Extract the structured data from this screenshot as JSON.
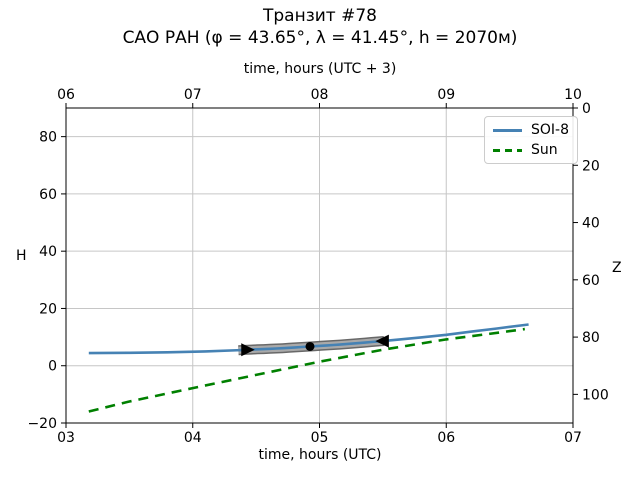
{
  "figure": {
    "title": "Транзит #78",
    "subtitle": "САО РАН (φ = 43.65°, λ = 41.45°, h = 2070м)"
  },
  "axes": {
    "top": {
      "label": "time, hours (UTC + 3)",
      "tick_labels": [
        "06",
        "07",
        "08",
        "09",
        "10"
      ],
      "tick_values": [
        3,
        4,
        5,
        6,
        7
      ]
    },
    "bottom": {
      "label": "time, hours (UTC)",
      "tick_labels": [
        "03",
        "04",
        "05",
        "06",
        "07"
      ],
      "tick_values": [
        3,
        4,
        5,
        6,
        7
      ]
    },
    "left": {
      "label": "H",
      "tick_labels": [
        "80",
        "60",
        "40",
        "20",
        "0",
        "−20"
      ],
      "tick_values": [
        80,
        60,
        40,
        20,
        0,
        -20
      ]
    },
    "right": {
      "label": "Z",
      "tick_labels": [
        "0",
        "20",
        "40",
        "60",
        "80",
        "100"
      ],
      "tick_values": [
        0,
        20,
        40,
        60,
        80,
        100
      ]
    }
  },
  "legend": {
    "items": [
      {
        "label": "SOI-8",
        "color": "#4682b4",
        "style": "solid"
      },
      {
        "label": "Sun",
        "color": "#008000",
        "style": "dashed"
      }
    ]
  },
  "chart_data": {
    "type": "line",
    "title": "Транзит #78",
    "subtitle": "САО РАН (φ = 43.65°, λ = 41.45°, h = 2070м)",
    "xlabel_bottom": "time, hours (UTC)",
    "xlabel_top": "time, hours (UTC + 3)",
    "ylabel_left": "H",
    "ylabel_right": "Z",
    "xlim": [
      3,
      7
    ],
    "xlim_top": [
      6,
      10
    ],
    "ylim": [
      -20,
      90
    ],
    "right_axis_relation": "Z = 90 − H",
    "grid": true,
    "x_grid": [
      4,
      5,
      6
    ],
    "y_grid": [
      80,
      60,
      40,
      20,
      0
    ],
    "legend_position": "upper right",
    "series": [
      {
        "name": "SOI-8",
        "color": "#4682b4",
        "style": "solid",
        "width": 2.6,
        "points": [
          [
            3.18,
            4.4
          ],
          [
            3.5,
            4.5
          ],
          [
            3.8,
            4.7
          ],
          [
            4.1,
            5.0
          ],
          [
            4.4,
            5.5
          ],
          [
            4.7,
            6.1
          ],
          [
            4.95,
            6.8
          ],
          [
            5.2,
            7.5
          ],
          [
            5.5,
            8.6
          ],
          [
            5.8,
            9.9
          ],
          [
            6.0,
            10.8
          ],
          [
            6.2,
            11.9
          ],
          [
            6.4,
            13.0
          ],
          [
            6.65,
            14.4
          ]
        ]
      },
      {
        "name": "Sun",
        "color": "#008000",
        "style": "dashed",
        "width": 2.6,
        "points": [
          [
            3.18,
            -16.0
          ],
          [
            3.5,
            -12.5
          ],
          [
            4.0,
            -7.8
          ],
          [
            4.5,
            -3.2
          ],
          [
            5.0,
            1.4
          ],
          [
            5.5,
            5.6
          ],
          [
            6.0,
            9.2
          ],
          [
            6.3,
            10.9
          ],
          [
            6.62,
            12.8
          ]
        ]
      }
    ],
    "transit_markers": {
      "band_t_start": 4.36,
      "band_t_end": 5.55,
      "start_triangle_t": 4.43,
      "culmination_dot_t": 4.925,
      "end_triangle_t": 5.5,
      "color": "#000000"
    }
  }
}
